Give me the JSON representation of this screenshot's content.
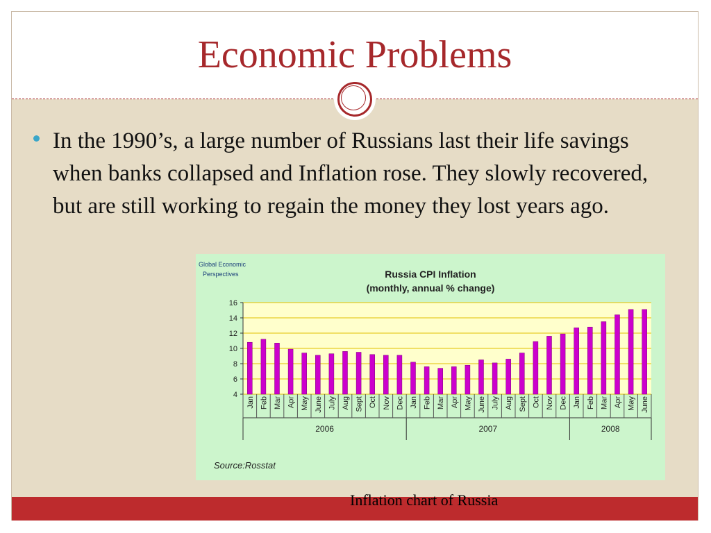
{
  "slide": {
    "title": "Economic Problems",
    "bullet": "In the 1990’s, a large number of Russians last their life savings when banks collapsed and Inflation rose. They slowly recovered, but are still working to regain the money they lost years ago.",
    "caption": "Inflation chart of Russia",
    "colors": {
      "title": "#a6282b",
      "content_bg": "#e6dcc6",
      "footer": "#bd2b2d",
      "bullet": "#3aa6c9"
    }
  },
  "chart_data": {
    "type": "bar",
    "logo": "Global Economic\nPerspectives",
    "title": "Russia CPI Inflation",
    "subtitle": "(monthly, annual % change)",
    "source": "Source:Rosstat",
    "ylim": [
      4,
      16
    ],
    "yticks": [
      4,
      6,
      8,
      10,
      12,
      14,
      16
    ],
    "grid": true,
    "bar_color": "#cc00cc",
    "categories": [
      "Jan",
      "Feb",
      "Mar",
      "Apr",
      "May",
      "June",
      "July",
      "Aug",
      "Sept",
      "Oct",
      "Nov",
      "Dec",
      "Jan",
      "Feb",
      "Mar",
      "Apr",
      "May",
      "June",
      "July",
      "Aug",
      "Sept",
      "Oct",
      "Nov",
      "Dec",
      "Jan",
      "Feb",
      "Mar",
      "Apr",
      "May",
      "June"
    ],
    "values": [
      10.8,
      11.2,
      10.7,
      9.9,
      9.4,
      9.1,
      9.3,
      9.6,
      9.5,
      9.2,
      9.1,
      9.1,
      8.2,
      7.6,
      7.4,
      7.6,
      7.8,
      8.5,
      8.1,
      8.6,
      9.4,
      10.9,
      11.6,
      11.9,
      12.7,
      12.8,
      13.5,
      14.4,
      15.1,
      15.1
    ],
    "years": [
      {
        "label": "2006",
        "count": 12
      },
      {
        "label": "2007",
        "count": 12
      },
      {
        "label": "2008",
        "count": 6
      }
    ]
  }
}
